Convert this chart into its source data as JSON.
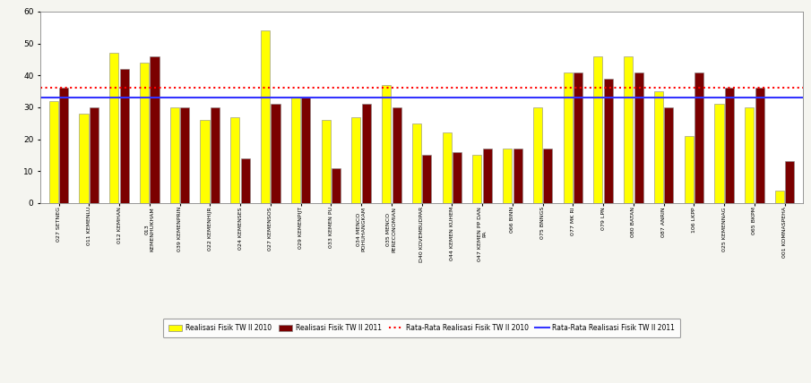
{
  "categories": [
    "027 SETNEG",
    "011 KEMENLU",
    "012 KEMHAN",
    "013\nKEMENHUKHAM",
    "039 KEMENPRIN",
    "022 KEMENHIJR",
    "024 KEMENSES",
    "027 KEMENSOS",
    "029 KEMENPIJT",
    "033 KEMEN PU",
    "034 MENCO\nPOHUHANGKAM",
    "035 MENCO\nPERECONOMIAN",
    "D40 KOVEMBUDPAR",
    "044 KEMEN KUHEM",
    "047 KEMEN PP DAN\nPA",
    "066 BINN",
    "075 BNNGS",
    "077 MK RI",
    "079 LPN",
    "080 BATAN",
    "087 ANRIN",
    "106 LKPP",
    "025 KEMENNAG",
    "065 BKPM",
    "001 KOMNASPEHA"
  ],
  "values_2010": [
    32,
    28,
    47,
    44,
    30,
    26,
    27,
    54,
    33,
    26,
    27,
    37,
    25,
    22,
    15,
    17,
    30,
    41,
    46,
    46,
    35,
    21,
    31,
    30,
    4
  ],
  "values_2011": [
    36,
    30,
    42,
    46,
    30,
    30,
    14,
    31,
    33,
    11,
    31,
    30,
    15,
    16,
    17,
    17,
    17,
    41,
    39,
    41,
    30,
    41,
    36,
    36,
    13
  ],
  "avg_2010": 36,
  "avg_2011": 33,
  "ylim": [
    0,
    60
  ],
  "yticks": [
    0,
    10,
    20,
    30,
    40,
    50,
    60
  ],
  "color_2010": "#FFFF00",
  "color_2011": "#7B0000",
  "color_avg_2010": "#FF0000",
  "color_avg_2011": "#3333FF",
  "legend_labels": [
    "Realisasi Fisik TW II 2010",
    "Realisasi Fisik TW II 2011",
    "Rata-Rata Realisasi Fisik TW II 2010",
    "Rata-Rata Realisasi Fisik TW II 2011"
  ],
  "bg_color": "#F5F5F0",
  "plot_bg_color": "#FFFFFF"
}
